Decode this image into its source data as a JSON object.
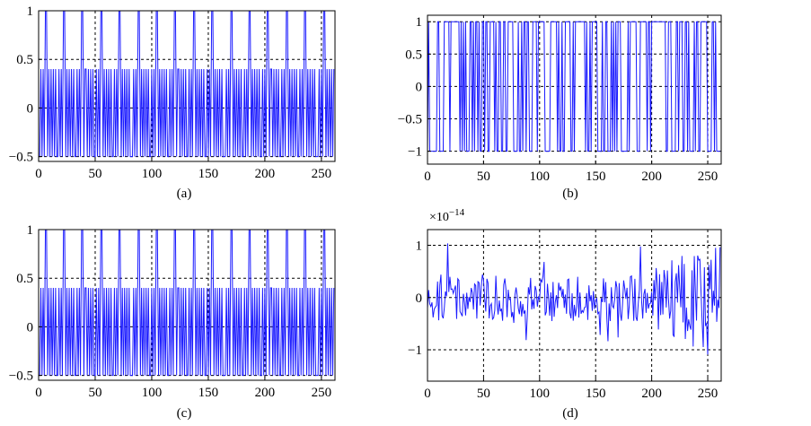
{
  "colors": {
    "series": "#1a1aff",
    "grid": "#000000",
    "background": "#ffffff"
  },
  "chart_data": [
    {
      "id": "a",
      "type": "line",
      "caption": "(a)",
      "xlim": [
        0,
        262
      ],
      "ylim": [
        -0.55,
        1
      ],
      "xticks": [
        0,
        50,
        100,
        150,
        200,
        250
      ],
      "xtick_labels": [
        "0",
        "50",
        "100",
        "150",
        "200",
        "250"
      ],
      "yticks": [
        -0.5,
        0,
        0.5,
        1
      ],
      "ytick_labels": [
        "−0.5",
        "0",
        "0.5",
        "1"
      ],
      "grid": true,
      "exponent_label": "",
      "series": [
        {
          "pattern": "periodic",
          "period": 16.4,
          "levels": [
            -0.5,
            0.4,
            1
          ],
          "samples": 262
        }
      ]
    },
    {
      "id": "b",
      "type": "line",
      "caption": "(b)",
      "xlim": [
        0,
        262
      ],
      "ylim": [
        -1.2,
        1.1
      ],
      "xticks": [
        0,
        50,
        100,
        150,
        200,
        250
      ],
      "xtick_labels": [
        "0",
        "50",
        "100",
        "150",
        "200",
        "250"
      ],
      "yticks": [
        -1,
        -0.5,
        0,
        0.5,
        1
      ],
      "ytick_labels": [
        "−1",
        "−0.5",
        "0",
        "0.5",
        "1"
      ],
      "grid": true,
      "exponent_label": "",
      "series": [
        {
          "pattern": "binary",
          "levels": [
            -1,
            1
          ],
          "samples": 262
        }
      ]
    },
    {
      "id": "c",
      "type": "line",
      "caption": "(c)",
      "xlim": [
        0,
        262
      ],
      "ylim": [
        -0.55,
        1
      ],
      "xticks": [
        0,
        50,
        100,
        150,
        200,
        250
      ],
      "xtick_labels": [
        "0",
        "50",
        "100",
        "150",
        "200",
        "250"
      ],
      "yticks": [
        -0.5,
        0,
        0.5,
        1
      ],
      "ytick_labels": [
        "−0.5",
        "0",
        "0.5",
        "1"
      ],
      "grid": true,
      "exponent_label": "",
      "series": [
        {
          "pattern": "periodic",
          "period": 16.4,
          "levels": [
            -0.5,
            0.4,
            1
          ],
          "samples": 262
        }
      ]
    },
    {
      "id": "d",
      "type": "line",
      "caption": "(d)",
      "xlim": [
        0,
        262
      ],
      "ylim": [
        -1.6,
        1.3
      ],
      "xticks": [
        0,
        50,
        100,
        150,
        200,
        250
      ],
      "xtick_labels": [
        "0",
        "50",
        "100",
        "150",
        "200",
        "250"
      ],
      "yticks": [
        -1,
        0,
        1
      ],
      "ytick_labels": [
        "−1",
        "0",
        "1"
      ],
      "grid": true,
      "exponent_label": "×10",
      "exponent_power": "−14",
      "series": [
        {
          "pattern": "noise",
          "amplitude": 0.45,
          "samples": 262
        }
      ]
    }
  ]
}
